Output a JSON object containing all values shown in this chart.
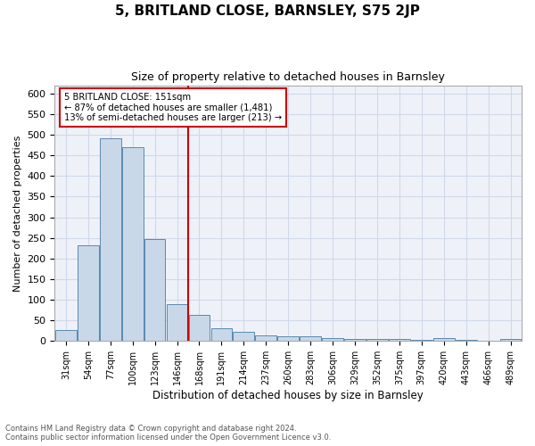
{
  "title": "5, BRITLAND CLOSE, BARNSLEY, S75 2JP",
  "subtitle": "Size of property relative to detached houses in Barnsley",
  "xlabel": "Distribution of detached houses by size in Barnsley",
  "ylabel": "Number of detached properties",
  "bar_color": "#c8d8e8",
  "bar_edge_color": "#5a8ab0",
  "grid_color": "#d0d8e8",
  "background_color": "#eef2f8",
  "categories": [
    "31sqm",
    "54sqm",
    "77sqm",
    "100sqm",
    "123sqm",
    "146sqm",
    "168sqm",
    "191sqm",
    "214sqm",
    "237sqm",
    "260sqm",
    "283sqm",
    "306sqm",
    "329sqm",
    "352sqm",
    "375sqm",
    "397sqm",
    "420sqm",
    "443sqm",
    "466sqm",
    "489sqm"
  ],
  "values": [
    26,
    232,
    492,
    470,
    248,
    90,
    63,
    30,
    23,
    13,
    11,
    11,
    8,
    5,
    4,
    4,
    3,
    8,
    3,
    1,
    6
  ],
  "vline_index": 5,
  "annotation_line1": "5 BRITLAND CLOSE: 151sqm",
  "annotation_line2": "← 87% of detached houses are smaller (1,481)",
  "annotation_line3": "13% of semi-detached houses are larger (213) →",
  "vline_color": "#cc0000",
  "annotation_box_color": "#ffffff",
  "annotation_box_edge": "#cc0000",
  "ylim": [
    0,
    620
  ],
  "yticks": [
    0,
    50,
    100,
    150,
    200,
    250,
    300,
    350,
    400,
    450,
    500,
    550,
    600
  ],
  "footnote1": "Contains HM Land Registry data © Crown copyright and database right 2024.",
  "footnote2": "Contains public sector information licensed under the Open Government Licence v3.0."
}
